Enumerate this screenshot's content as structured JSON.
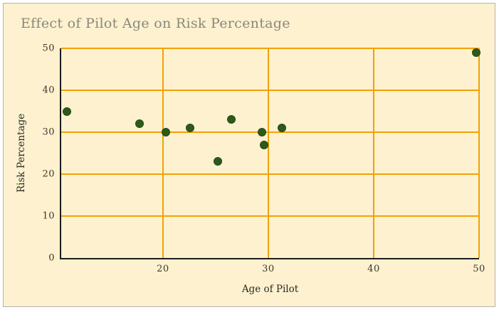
{
  "chart_data": {
    "type": "scatter",
    "title": "Effect of Pilot Age on Risk Percentage",
    "xlabel": "Age of Pilot",
    "ylabel": "Risk Percentage",
    "xlim": [
      10.35,
      50
    ],
    "ylim": [
      0,
      50
    ],
    "x_ticks": [
      20,
      30,
      40,
      50
    ],
    "y_ticks": [
      0,
      10,
      20,
      30,
      40,
      50
    ],
    "grid": true,
    "legend": false,
    "points": [
      {
        "x": 10.9,
        "y": 35
      },
      {
        "x": 17.8,
        "y": 32
      },
      {
        "x": 20.3,
        "y": 30
      },
      {
        "x": 22.6,
        "y": 31
      },
      {
        "x": 25.2,
        "y": 23
      },
      {
        "x": 26.5,
        "y": 33
      },
      {
        "x": 29.4,
        "y": 30
      },
      {
        "x": 29.6,
        "y": 27
      },
      {
        "x": 31.3,
        "y": 31
      },
      {
        "x": 49.7,
        "y": 49
      }
    ],
    "colors": {
      "page": "#FFFFFF",
      "background": "#FDF1CF",
      "card_border": "#B3B3B3",
      "gridline": "#F2A104",
      "axis": "#1C1C1C",
      "point_fill": "#2E591B",
      "point_border": "#254A12",
      "title_text": "#8A887C",
      "tick_text": "#3A372B",
      "axis_label_text": "#2B2A22"
    }
  }
}
